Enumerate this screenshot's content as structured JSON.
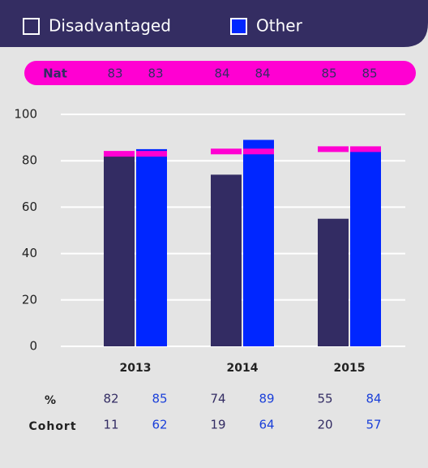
{
  "chart_data": {
    "type": "bar",
    "series": [
      {
        "name": "Disadvantaged",
        "color": "#332c63",
        "values": [
          82,
          74,
          55
        ],
        "national": [
          83,
          84,
          85
        ],
        "cohort": [
          11,
          19,
          20
        ]
      },
      {
        "name": "Other",
        "color": "#0026ff",
        "values": [
          85,
          89,
          84
        ],
        "national": [
          83,
          84,
          85
        ],
        "cohort": [
          62,
          64,
          57
        ]
      }
    ],
    "categories": [
      "2013",
      "2014",
      "2015"
    ],
    "national_label": "Nat",
    "national_color": "#ff00d2",
    "percent_label": "%",
    "cohort_label": "Cohort",
    "ylim": [
      0,
      100
    ],
    "yticks": [
      0,
      20,
      40,
      60,
      80,
      100
    ],
    "grid": true
  }
}
